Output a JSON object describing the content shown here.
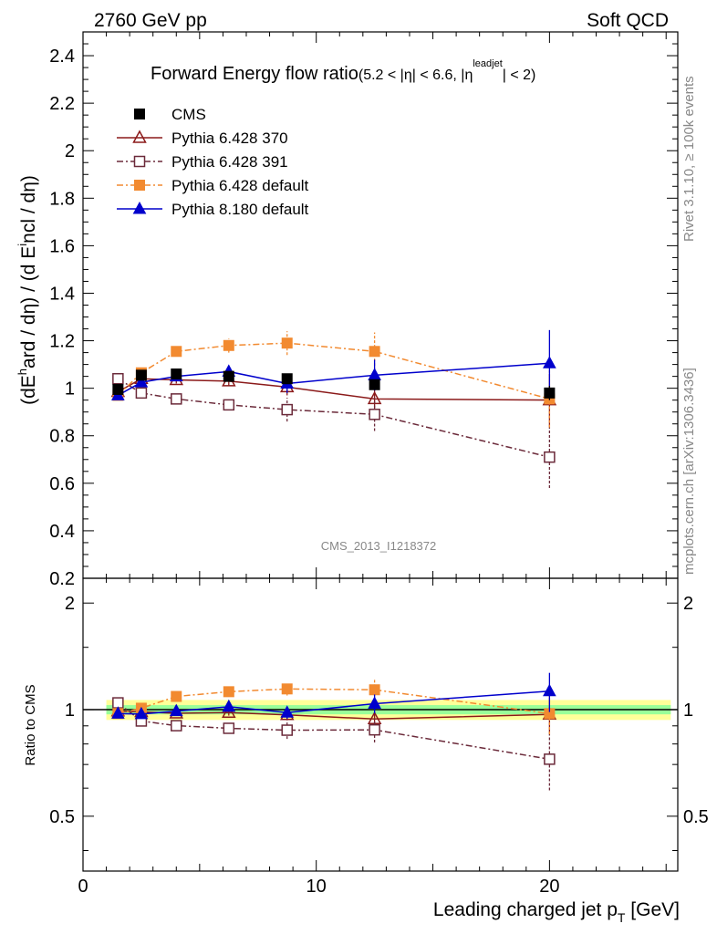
{
  "header": {
    "left": "2760 GeV pp",
    "right": "Soft QCD"
  },
  "side_labels": {
    "rivet": "Rivet 3.1.10, ≥ 100k events",
    "mcplots": "mcplots.cern.ch [arXiv:1306.3436]"
  },
  "chart_data": {
    "type": "scatter",
    "title": "Forward Energy flow ratio(5.2 < |η| < 6.6, |η^leadjet| < 2)",
    "title_main": "Forward Energy flow ratio",
    "title_sub": {
      "p1": "(5.2 < |",
      "eta1": "η",
      "p2": "| < 6.6, |",
      "eta2": "η",
      "sup": "leadjet",
      "p3": "| < 2)"
    },
    "watermark": "CMS_2013_I1218372",
    "ylabel": "(dE^hard / dη) / (d Eincl / dη)",
    "ylabel_parts": {
      "p1": "(dE",
      "sup": "h",
      "p2": "ard / dη) / (d E",
      "sub": "i",
      "p3": "ncl / dη)"
    },
    "xlabel": "Leading charged jet p_T [GeV]",
    "xlabel_parts": {
      "p1": "Leading charged jet p",
      "sub": "T",
      "p2": " [GeV]"
    },
    "ratio_ylabel": "Ratio to CMS",
    "xlim": [
      0,
      25.5
    ],
    "ylim": [
      0.2,
      2.5
    ],
    "ratio_ylim": [
      0.35,
      2.35
    ],
    "x_ticks": [
      "0",
      "10",
      "20"
    ],
    "y_ticks": [
      "0.2",
      "0.4",
      "0.6",
      "0.8",
      "1",
      "1.2",
      "1.4",
      "1.6",
      "1.8",
      "2",
      "2.2",
      "2.4"
    ],
    "ratio_ticks": [
      "0.5",
      "1",
      "2"
    ],
    "band_inner": [
      0.97,
      1.03
    ],
    "band_outer": [
      0.935,
      1.065
    ],
    "x": [
      1.5,
      2.5,
      4.0,
      6.25,
      8.75,
      12.5,
      20.0
    ],
    "series": [
      {
        "name": "CMS",
        "color": "#000000",
        "marker": "square-filled",
        "line": "none",
        "values": [
          0.995,
          1.055,
          1.06,
          1.05,
          1.04,
          1.015,
          0.98
        ],
        "errors": [
          0.02,
          0.02,
          0.015,
          0.015,
          0.02,
          0.02,
          0.03
        ]
      },
      {
        "name": "Pythia 6.428 370",
        "color": "#8b1a1a",
        "marker": "triangle-open",
        "line": "solid",
        "values": [
          0.985,
          1.04,
          1.035,
          1.03,
          1.005,
          0.955,
          0.95
        ],
        "errors": [
          0.015,
          0.015,
          0.015,
          0.02,
          0.035,
          0.05,
          0.11
        ]
      },
      {
        "name": "Pythia 6.428 391",
        "color": "#6b2a3a",
        "marker": "square-open",
        "line": "dashdot",
        "values": [
          1.04,
          0.98,
          0.955,
          0.93,
          0.91,
          0.89,
          0.71
        ],
        "errors": [
          0.015,
          0.015,
          0.015,
          0.02,
          0.05,
          0.07,
          0.13
        ]
      },
      {
        "name": "Pythia 6.428 default",
        "color": "#f28a30",
        "marker": "square-filled",
        "line": "dashdot",
        "values": [
          0.97,
          1.065,
          1.155,
          1.18,
          1.19,
          1.155,
          0.955
        ],
        "errors": [
          0.015,
          0.015,
          0.02,
          0.03,
          0.05,
          0.08,
          0.12
        ]
      },
      {
        "name": "Pythia 8.180 default",
        "color": "#0000cc",
        "marker": "triangle-filled",
        "line": "solid",
        "values": [
          0.97,
          1.025,
          1.05,
          1.07,
          1.02,
          1.055,
          1.105
        ],
        "errors": [
          0.015,
          0.015,
          0.02,
          0.025,
          0.04,
          0.065,
          0.14
        ]
      }
    ]
  }
}
